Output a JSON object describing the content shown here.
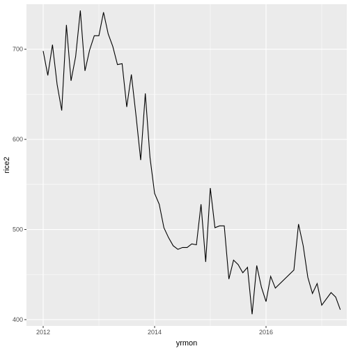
{
  "chart_data": {
    "type": "line",
    "xlabel": "yrmon",
    "ylabel": "rice2",
    "x_axis": {
      "type": "time",
      "range": [
        2011.7,
        2017.45
      ],
      "ticks": [
        2012,
        2014,
        2016
      ],
      "tick_labels": [
        "2012",
        "2014",
        "2016"
      ],
      "minor_ticks": [
        2013,
        2015,
        2017
      ]
    },
    "y_axis": {
      "range": [
        393,
        750
      ],
      "ticks": [
        400,
        500,
        600,
        700
      ],
      "tick_labels": [
        "400",
        "500",
        "600",
        "700"
      ],
      "minor_ticks": [
        450,
        550,
        650
      ]
    },
    "grid": true,
    "panel_background": "#ebebeb",
    "grid_color": "#ffffff",
    "line_color": "#000000",
    "series": [
      {
        "x": [
          2012.0,
          2012.083,
          2012.167,
          2012.25,
          2012.333,
          2012.417,
          2012.5,
          2012.583,
          2012.667,
          2012.75,
          2012.833,
          2012.917,
          2013.0,
          2013.083,
          2013.167,
          2013.25,
          2013.333,
          2013.417,
          2013.5,
          2013.583,
          2013.667,
          2013.75,
          2013.833,
          2013.917,
          2014.0,
          2014.083,
          2014.167,
          2014.25,
          2014.333,
          2014.417,
          2014.5,
          2014.583,
          2014.667,
          2014.75,
          2014.833,
          2014.917,
          2015.0,
          2015.083,
          2015.167,
          2015.25,
          2015.333,
          2015.417,
          2015.5,
          2015.583,
          2015.667,
          2015.75,
          2015.833,
          2015.917,
          2016.0,
          2016.083,
          2016.167,
          2016.5,
          2016.583,
          2016.667,
          2016.75,
          2016.833,
          2016.917,
          2017.0,
          2017.167,
          2017.25,
          2017.333
        ],
        "y": [
          698,
          671,
          705,
          661,
          632,
          727,
          665,
          692,
          743,
          676,
          699,
          715,
          715,
          741,
          717,
          703,
          683,
          684,
          636,
          672,
          626,
          577,
          651,
          580,
          540,
          528,
          502,
          491,
          482,
          478,
          480,
          480,
          484,
          483,
          528,
          464,
          546,
          502,
          504,
          504,
          445,
          466,
          461,
          452,
          458,
          406,
          460,
          436,
          420,
          448,
          435,
          455,
          506,
          482,
          447,
          429,
          440,
          416,
          430,
          425,
          411
        ]
      }
    ]
  }
}
